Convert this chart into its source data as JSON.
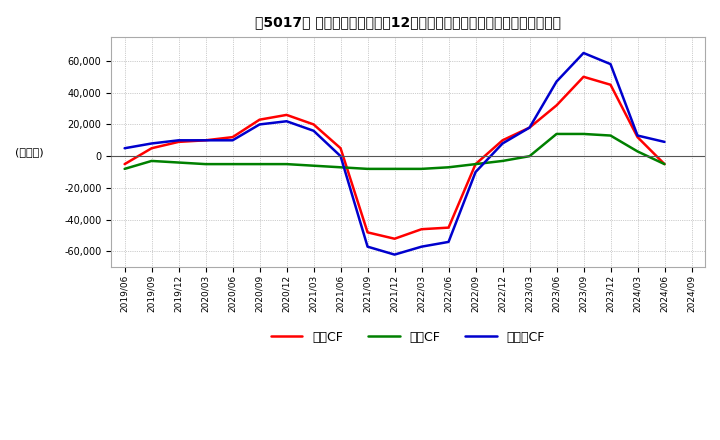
{
  "title": "【5017】 キャッシュフローの12か月移動合計の対前年同期増減額の推移",
  "ylabel": "(百万円)",
  "ylim": [
    -70000,
    75000
  ],
  "yticks": [
    -60000,
    -40000,
    -20000,
    0,
    20000,
    40000,
    60000
  ],
  "legend_labels": [
    "営業CF",
    "投資CF",
    "フリーCF"
  ],
  "line_colors": [
    "#ff0000",
    "#008000",
    "#0000cd"
  ],
  "dates": [
    "2019/06",
    "2019/09",
    "2019/12",
    "2020/03",
    "2020/06",
    "2020/09",
    "2020/12",
    "2021/03",
    "2021/06",
    "2021/09",
    "2021/12",
    "2022/03",
    "2022/06",
    "2022/09",
    "2022/12",
    "2023/03",
    "2023/06",
    "2023/09",
    "2023/12",
    "2024/03",
    "2024/06",
    "2024/09"
  ],
  "operating_cf": [
    -5000,
    5000,
    9000,
    10000,
    12000,
    23000,
    26000,
    20000,
    5000,
    -48000,
    -52000,
    -46000,
    -45000,
    -5000,
    10000,
    18000,
    32000,
    50000,
    45000,
    12000,
    -5000,
    null
  ],
  "investing_cf": [
    -8000,
    -3000,
    -4000,
    -5000,
    -5000,
    -5000,
    -5000,
    -6000,
    -7000,
    -8000,
    -8000,
    -8000,
    -7000,
    -5000,
    -3000,
    0,
    14000,
    14000,
    13000,
    3000,
    -5000,
    null
  ],
  "free_cf": [
    5000,
    8000,
    10000,
    10000,
    10000,
    20000,
    22000,
    16000,
    0,
    -57000,
    -62000,
    -57000,
    -54000,
    -10000,
    8000,
    18000,
    47000,
    65000,
    58000,
    13000,
    9000,
    null
  ]
}
